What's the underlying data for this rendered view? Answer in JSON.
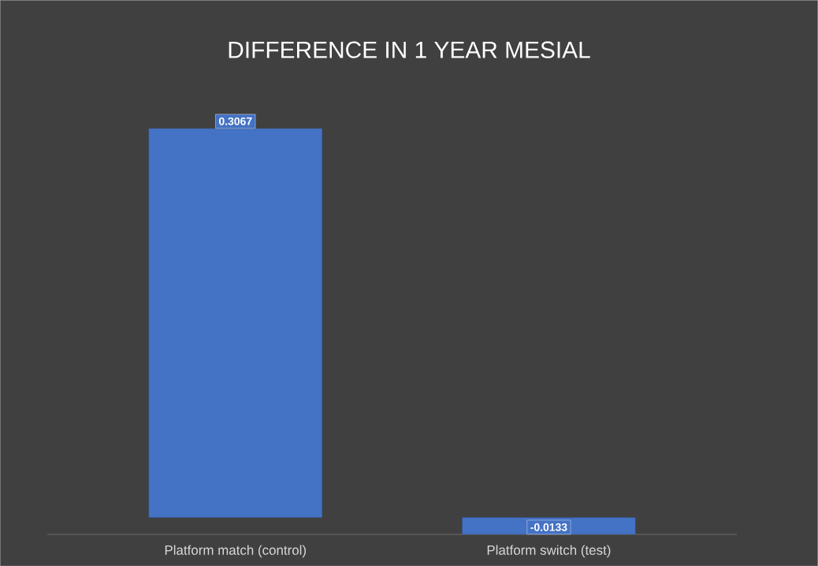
{
  "chart_data": {
    "type": "bar",
    "title": "DIFFERENCE IN 1 YEAR  MESIAL",
    "categories": [
      "Platform match (control)",
      "Platform switch (test)"
    ],
    "values": [
      0.3067,
      -0.0133
    ],
    "color": "#4472c4",
    "data_labels": true
  }
}
